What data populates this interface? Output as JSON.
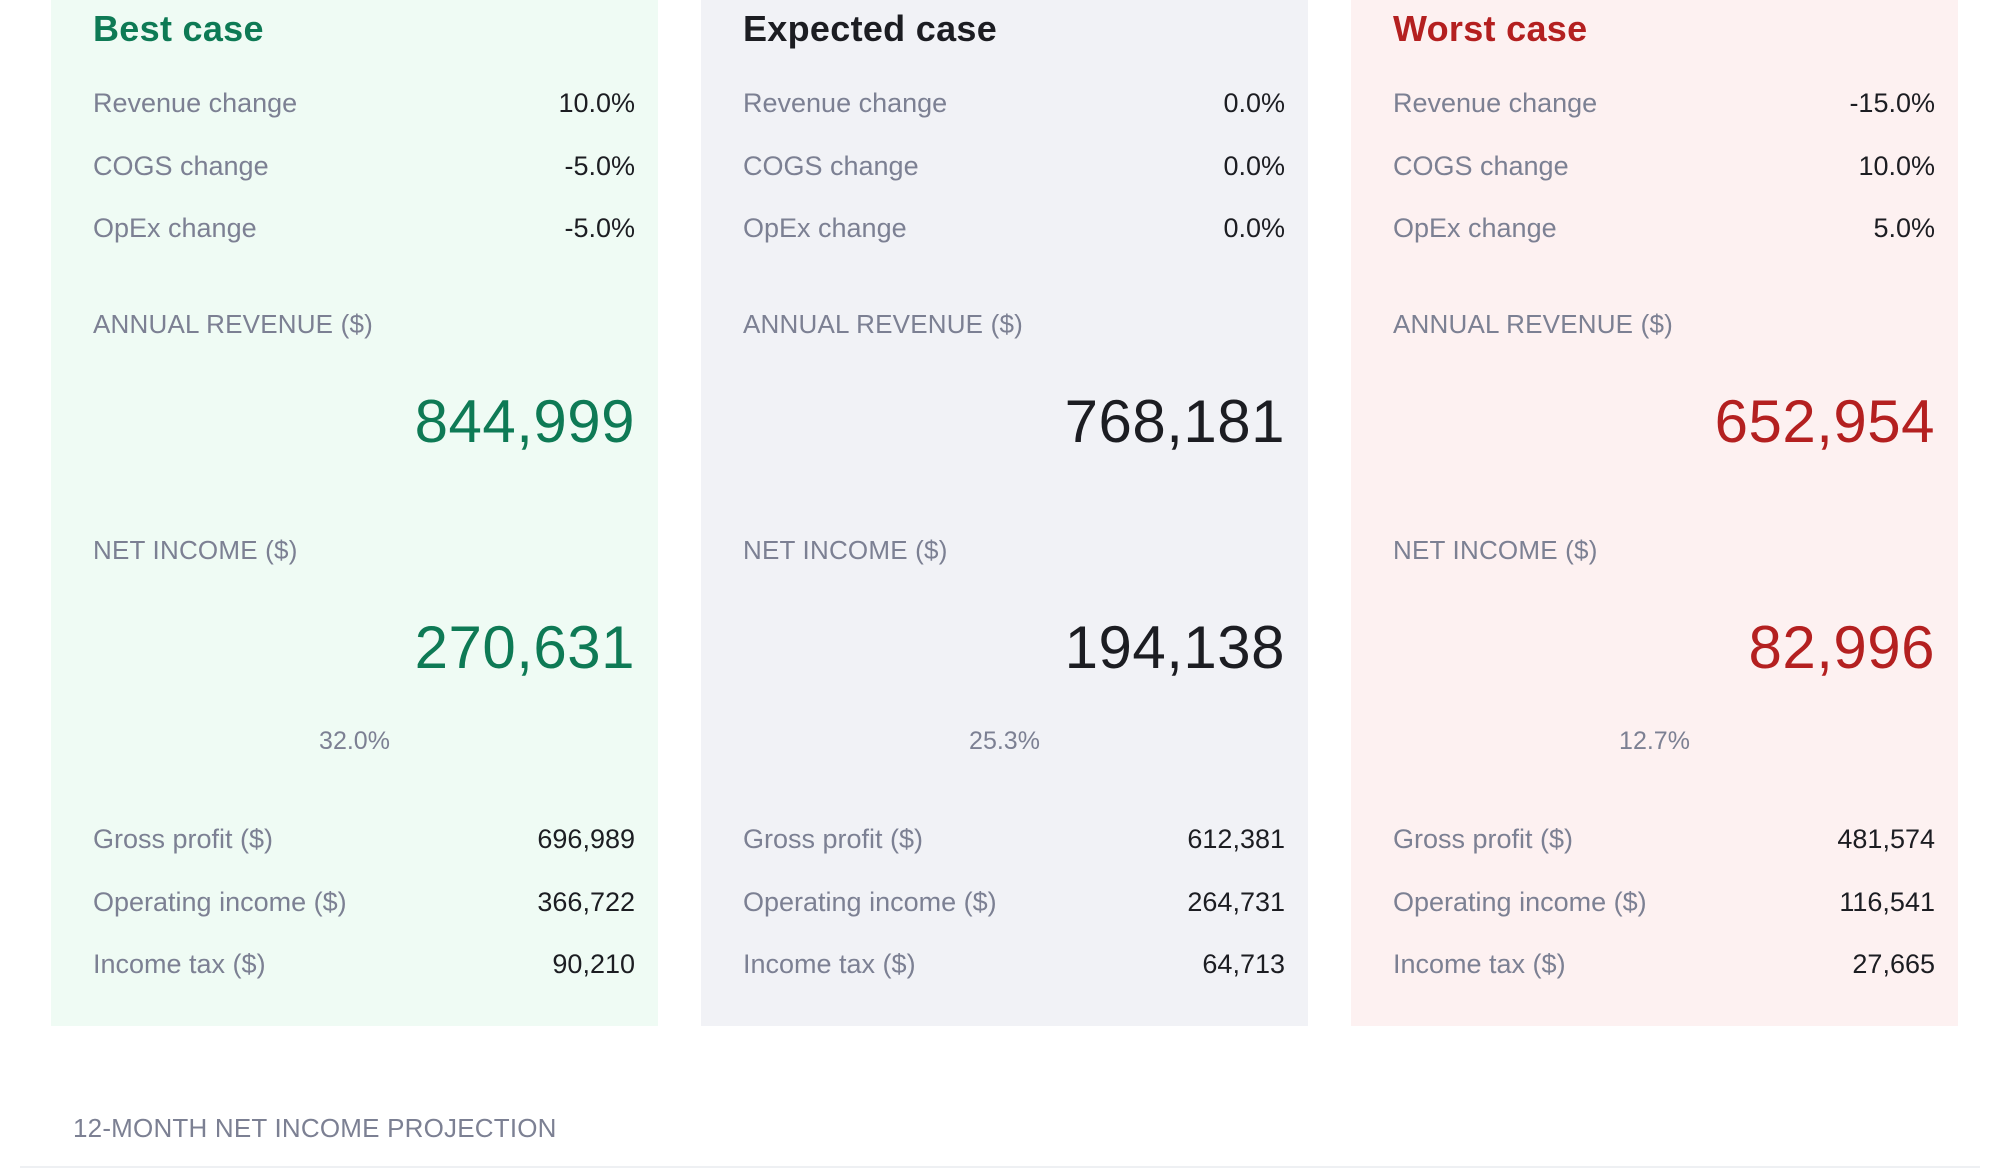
{
  "scenarios": [
    {
      "title": "Best case",
      "inputs": [
        {
          "label": "Revenue change",
          "value": "10.0%"
        },
        {
          "label": "COGS change",
          "value": "-5.0%"
        },
        {
          "label": "OpEx change",
          "value": "-5.0%"
        }
      ],
      "revenue_label": "ANNUAL REVENUE ($)",
      "revenue": "844,999",
      "net_income_label": "NET INCOME ($)",
      "net_income": "270,631",
      "net_margin": "32.0%",
      "details": [
        {
          "label": "Gross profit ($)",
          "value": "696,989"
        },
        {
          "label": "Operating income ($)",
          "value": "366,722"
        },
        {
          "label": "Income tax ($)",
          "value": "90,210"
        }
      ],
      "accent_color": "#0e7a55",
      "background_color": "#effbf4"
    },
    {
      "title": "Expected case",
      "inputs": [
        {
          "label": "Revenue change",
          "value": "0.0%"
        },
        {
          "label": "COGS change",
          "value": "0.0%"
        },
        {
          "label": "OpEx change",
          "value": "0.0%"
        }
      ],
      "revenue_label": "ANNUAL REVENUE ($)",
      "revenue": "768,181",
      "net_income_label": "NET INCOME ($)",
      "net_income": "194,138",
      "net_margin": "25.3%",
      "details": [
        {
          "label": "Gross profit ($)",
          "value": "612,381"
        },
        {
          "label": "Operating income ($)",
          "value": "264,731"
        },
        {
          "label": "Income tax ($)",
          "value": "64,713"
        }
      ],
      "accent_color": "#1c1d22",
      "background_color": "#f1f2f6"
    },
    {
      "title": "Worst case",
      "inputs": [
        {
          "label": "Revenue change",
          "value": "-15.0%"
        },
        {
          "label": "COGS change",
          "value": "10.0%"
        },
        {
          "label": "OpEx change",
          "value": "5.0%"
        }
      ],
      "revenue_label": "ANNUAL REVENUE ($)",
      "revenue": "652,954",
      "net_income_label": "NET INCOME ($)",
      "net_income": "82,996",
      "net_margin": "12.7%",
      "details": [
        {
          "label": "Gross profit ($)",
          "value": "481,574"
        },
        {
          "label": "Operating income ($)",
          "value": "116,541"
        },
        {
          "label": "Income tax ($)",
          "value": "27,665"
        }
      ],
      "accent_color": "#b42020",
      "background_color": "#fdf1f1"
    }
  ],
  "projection": {
    "title": "12-MONTH NET INCOME PROJECTION"
  }
}
